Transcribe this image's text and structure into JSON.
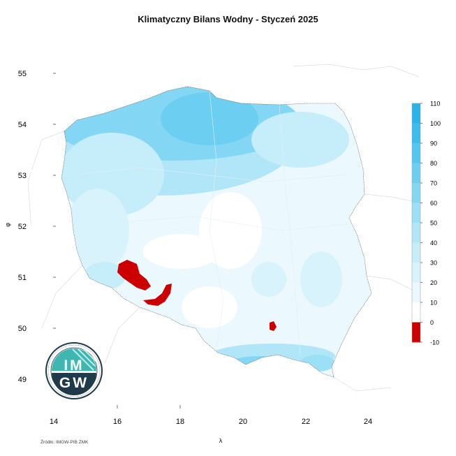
{
  "title": "Klimatyczny Bilans Wodny - Styczeń 2025",
  "source": "Źródło: IMGW-PIB ZMK",
  "axes": {
    "x_label": "λ",
    "y_label": "φ",
    "x_ticks": [
      "14",
      "16",
      "18",
      "20",
      "22",
      "24"
    ],
    "y_ticks": [
      "55",
      "54",
      "53",
      "52",
      "51",
      "50",
      "49"
    ]
  },
  "legend": {
    "values": [
      "110",
      "100",
      "90",
      "80",
      "70",
      "60",
      "50",
      "40",
      "30",
      "20",
      "10",
      "0",
      "-10"
    ],
    "colors": [
      "#2ab4ea",
      "#3dbdee",
      "#55c6f0",
      "#6ccff2",
      "#84d7f4",
      "#9be0f6",
      "#b1e6f8",
      "#c5edfa",
      "#d8f3fc",
      "#ebf8fd",
      "#ffffff",
      "#cc0000"
    ]
  },
  "logo": {
    "text": "IMGW"
  }
}
